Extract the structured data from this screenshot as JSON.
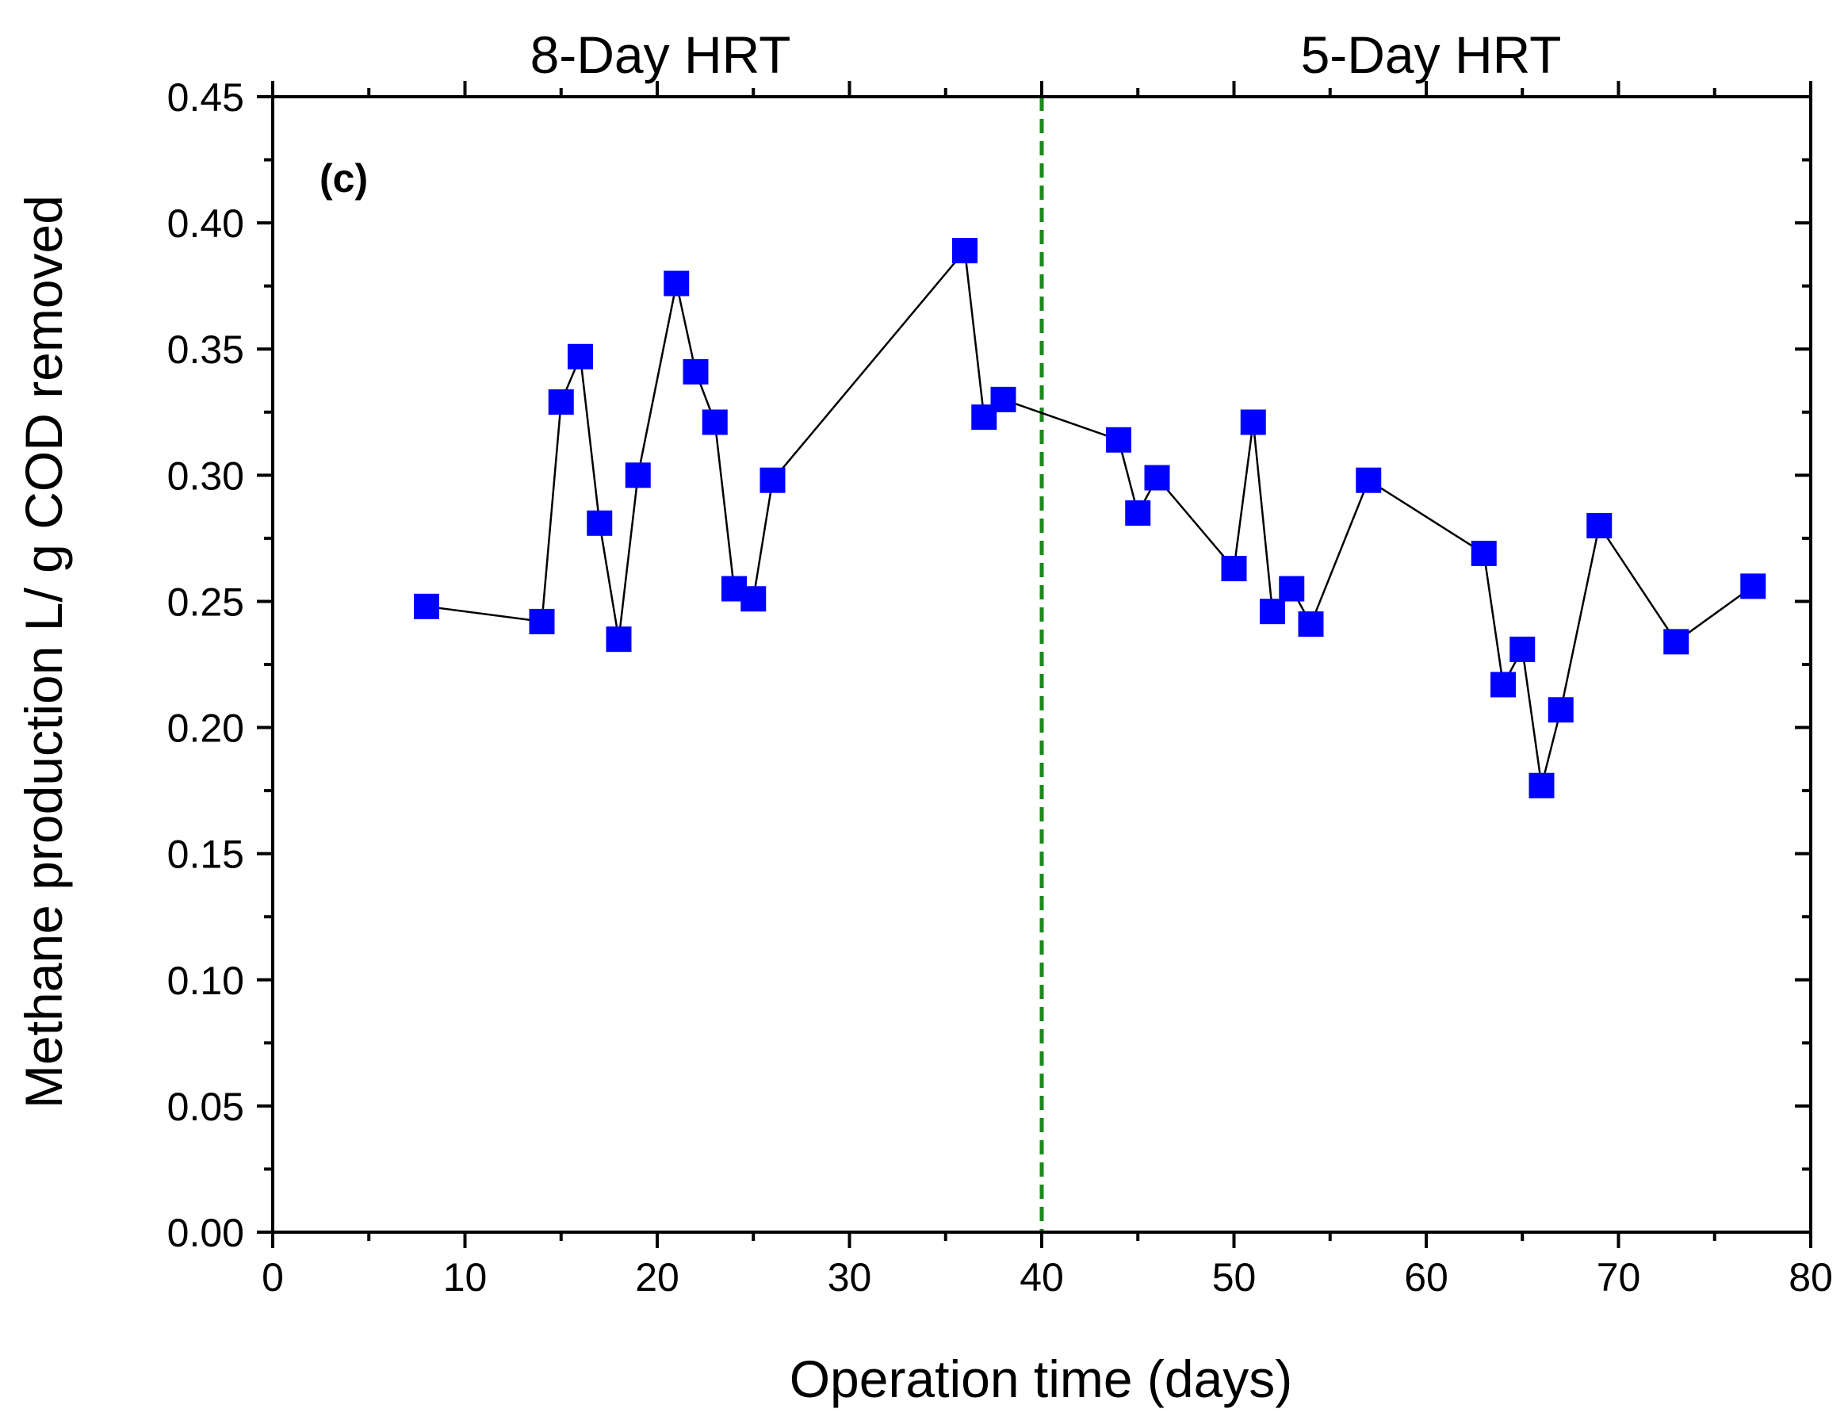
{
  "chart_data": {
    "type": "scatter",
    "panel_label": "(c)",
    "title": "",
    "xlabel": "Operation time (days)",
    "ylabel": "Methane production L/ g COD removed",
    "xlim": [
      0,
      80
    ],
    "ylim": [
      0,
      0.45
    ],
    "x_ticks": [
      0,
      10,
      20,
      30,
      40,
      50,
      60,
      70,
      80
    ],
    "x_tick_labels": [
      "0",
      "10",
      "20",
      "30",
      "40",
      "50",
      "60",
      "70",
      "80"
    ],
    "y_ticks": [
      0,
      0.05,
      0.1,
      0.15,
      0.2,
      0.25,
      0.3,
      0.35,
      0.4,
      0.45
    ],
    "y_tick_labels": [
      "0.00",
      "0.05",
      "0.10",
      "0.15",
      "0.20",
      "0.25",
      "0.30",
      "0.35",
      "0.40",
      "0.45"
    ],
    "grid": false,
    "legend": "none",
    "regions": [
      {
        "label": "8-Day HRT",
        "x_start": 0,
        "x_end": 40
      },
      {
        "label": "5-Day HRT",
        "x_start": 40,
        "x_end": 80
      }
    ],
    "divider_x": 40,
    "colors": {
      "marker": "#0000ff",
      "line": "#000000",
      "divider": "#1a8a1a",
      "axis": "#000000"
    },
    "series": [
      {
        "name": "Methane production",
        "marker": "square",
        "connected": true,
        "x": [
          8,
          14,
          15,
          16,
          17,
          18,
          19,
          21,
          22,
          23,
          24,
          25,
          26,
          36,
          37,
          38,
          44,
          45,
          46,
          50,
          51,
          52,
          53,
          54,
          57,
          63,
          64,
          65,
          66,
          67,
          69,
          73,
          77
        ],
        "y": [
          0.248,
          0.242,
          0.329,
          0.347,
          0.281,
          0.235,
          0.3,
          0.376,
          0.341,
          0.321,
          0.255,
          0.251,
          0.298,
          0.389,
          0.323,
          0.33,
          0.314,
          0.285,
          0.299,
          0.263,
          0.321,
          0.246,
          0.255,
          0.241,
          0.298,
          0.269,
          0.217,
          0.231,
          0.177,
          0.207,
          0.28,
          0.234,
          0.256
        ]
      }
    ]
  }
}
